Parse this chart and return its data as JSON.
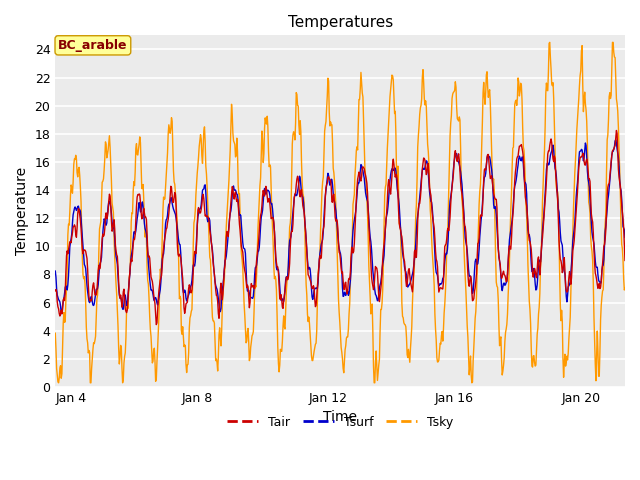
{
  "title": "Temperatures",
  "xlabel": "Time",
  "ylabel": "Temperature",
  "annotation": "BC_arable",
  "ylim": [
    0,
    25
  ],
  "yticks": [
    0,
    2,
    4,
    6,
    8,
    10,
    12,
    14,
    16,
    18,
    20,
    22,
    24
  ],
  "xtick_labels": [
    "Jan 4",
    "Jan 8",
    "Jan 12",
    "Jan 16",
    "Jan 20"
  ],
  "xtick_positions": [
    0,
    4,
    8,
    12,
    16
  ],
  "line_colors": {
    "Tair": "#cc0000",
    "Tsurf": "#0000cc",
    "Tsky": "#ff9900"
  },
  "fig_bg": "#ffffff",
  "plot_bg": "#ebebeb",
  "grid_color": "#ffffff",
  "annotation_bg": "#ffff99",
  "annotation_border": "#cc9900",
  "annotation_text_color": "#880000",
  "n_days": 18,
  "steps_per_day": 48
}
